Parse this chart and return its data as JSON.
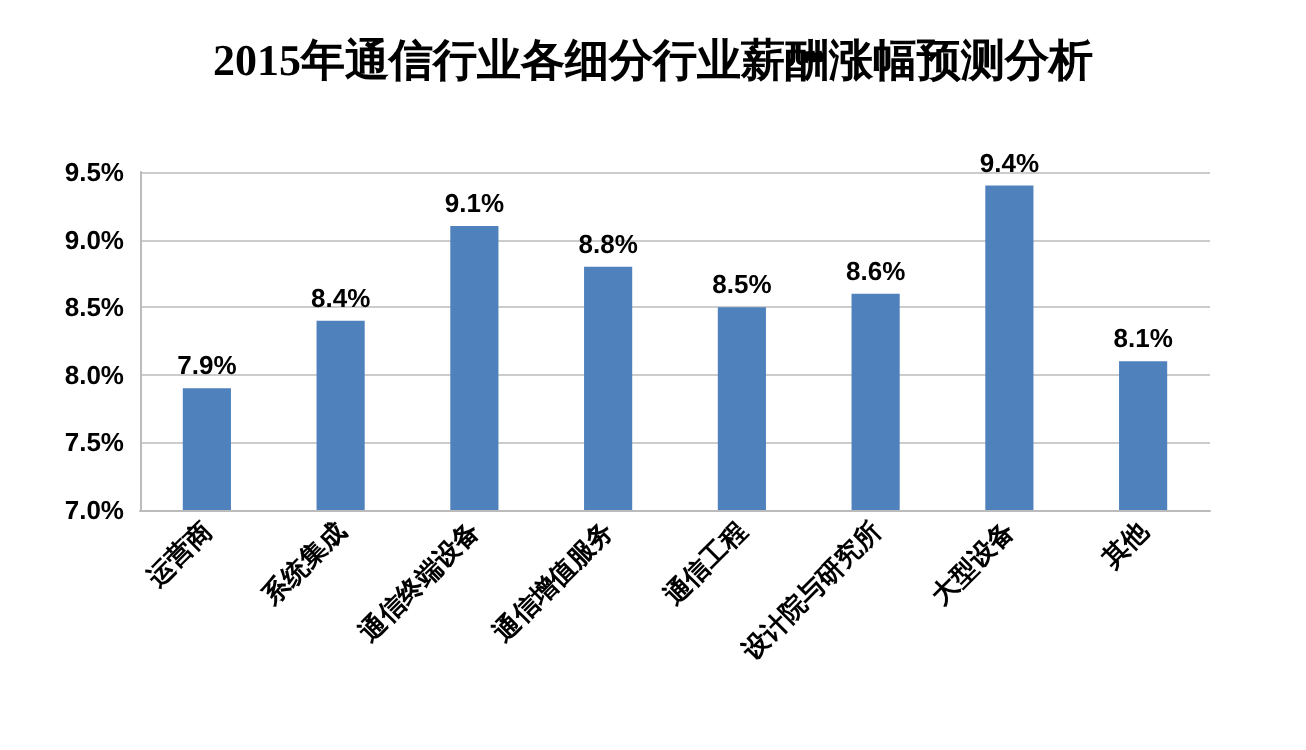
{
  "chart_data": {
    "type": "bar",
    "title": "2015年通信行业各细分行业薪酬涨幅预测分析",
    "categories": [
      "运营商",
      "系统集成",
      "通信终端设备",
      "通信增值服务",
      "通信工程",
      "设计院与研究所",
      "大型设备",
      "其他"
    ],
    "values": [
      7.9,
      8.4,
      9.1,
      8.8,
      8.5,
      8.6,
      9.4,
      8.1
    ],
    "value_labels": [
      "7.9%",
      "8.4%",
      "9.1%",
      "8.8%",
      "8.5%",
      "8.6%",
      "9.4%",
      "8.1%"
    ],
    "color": "#4f81bd",
    "ylim": [
      7.0,
      9.5
    ],
    "yticks": [
      {
        "value": 7.0,
        "label": "7.0%"
      },
      {
        "value": 7.5,
        "label": "7.5%"
      },
      {
        "value": 8.0,
        "label": "8.0%"
      },
      {
        "value": 8.5,
        "label": "8.5%"
      },
      {
        "value": 9.0,
        "label": "9.0%"
      },
      {
        "value": 9.5,
        "label": "9.5%"
      }
    ],
    "grid": true
  }
}
